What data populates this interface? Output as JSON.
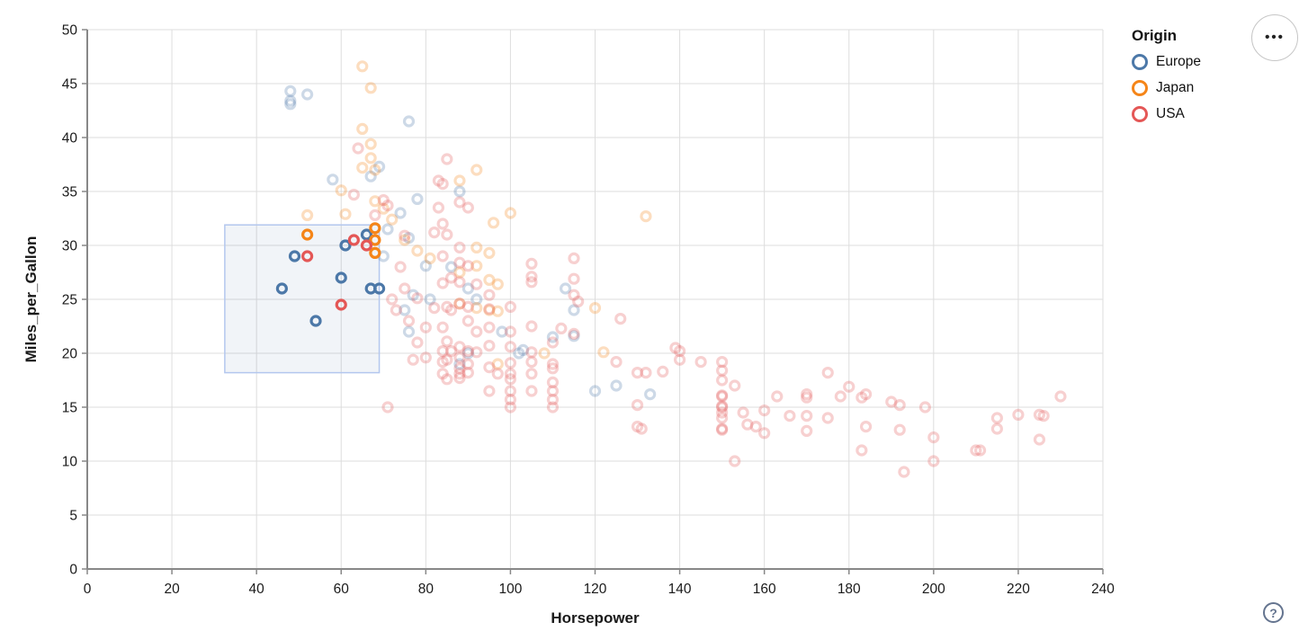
{
  "page": {
    "background": "#ffffff"
  },
  "controls": {
    "menu_icon": "•••",
    "help_icon": "?"
  },
  "chart_data": {
    "type": "scatter",
    "title": "",
    "xlabel": "Horsepower",
    "ylabel": "Miles_per_Gallon",
    "xlim": [
      0,
      240
    ],
    "ylim": [
      0,
      50
    ],
    "x_ticks": [
      0,
      20,
      40,
      60,
      80,
      100,
      120,
      140,
      160,
      180,
      200,
      220,
      240
    ],
    "y_ticks": [
      0,
      5,
      10,
      15,
      20,
      25,
      30,
      35,
      40,
      45,
      50
    ],
    "grid": true,
    "style": {
      "grid_color": "#dddddd",
      "axis_color": "#888888",
      "label_color": "#1a1a1a",
      "point_radius": 5,
      "point_stroke_width": 3.2,
      "faded_opacity": 0.28,
      "brush_fill": "#4c78a8",
      "brush_fill_opacity": 0.08,
      "brush_stroke": "#b3c7ee"
    },
    "legend": {
      "title": "Origin",
      "position": "top-right",
      "entries": [
        {
          "label": "Europe",
          "color": "#4c78a8"
        },
        {
          "label": "Japan",
          "color": "#f58518"
        },
        {
          "label": "USA",
          "color": "#e45756"
        }
      ]
    },
    "brush_selection": {
      "hp": [
        32.5,
        69
      ],
      "mpg": [
        18.2,
        31.9
      ]
    },
    "series": [
      {
        "name": "Europe",
        "color": "#4c78a8",
        "selected": [
          [
            46,
            26
          ],
          [
            49,
            29
          ],
          [
            54,
            23
          ],
          [
            60,
            27
          ],
          [
            61,
            30
          ],
          [
            66,
            31
          ],
          [
            67,
            26
          ],
          [
            69,
            26
          ]
        ],
        "points": [
          [
            48,
            44.3
          ],
          [
            52,
            44
          ],
          [
            48,
            43.4
          ],
          [
            48,
            43.1
          ],
          [
            76,
            41.5
          ],
          [
            69,
            37.3
          ],
          [
            67,
            36.4
          ],
          [
            58,
            36.1
          ],
          [
            88,
            35
          ],
          [
            78,
            34.3
          ],
          [
            74,
            33
          ],
          [
            71,
            31.5
          ],
          [
            76,
            30.7
          ],
          [
            70,
            29
          ],
          [
            86,
            28
          ],
          [
            80,
            28.1
          ],
          [
            90,
            26
          ],
          [
            113,
            26
          ],
          [
            77,
            25.4
          ],
          [
            81,
            25
          ],
          [
            92,
            25
          ],
          [
            75,
            24
          ],
          [
            115,
            24
          ],
          [
            76,
            22
          ],
          [
            98,
            22
          ],
          [
            115,
            21.6
          ],
          [
            110,
            21.5
          ],
          [
            90,
            20
          ],
          [
            102,
            20
          ],
          [
            103,
            20.3
          ],
          [
            88,
            19
          ],
          [
            125,
            17
          ],
          [
            120,
            16.5
          ],
          [
            133,
            16.2
          ]
        ]
      },
      {
        "name": "Japan",
        "color": "#f58518",
        "selected": [
          [
            52,
            31
          ],
          [
            68,
            31.6
          ],
          [
            68,
            30.5
          ],
          [
            68,
            29.3
          ]
        ],
        "points": [
          [
            65,
            46.6
          ],
          [
            67,
            44.6
          ],
          [
            65,
            40.8
          ],
          [
            67,
            39.4
          ],
          [
            67,
            38.1
          ],
          [
            68,
            37
          ],
          [
            92,
            37
          ],
          [
            88,
            36
          ],
          [
            65,
            37.2
          ],
          [
            60,
            35.1
          ],
          [
            68,
            34.1
          ],
          [
            61,
            32.9
          ],
          [
            52,
            32.8
          ],
          [
            70,
            33.4
          ],
          [
            72,
            32.4
          ],
          [
            96,
            32.1
          ],
          [
            100,
            33
          ],
          [
            132,
            32.7
          ],
          [
            75,
            30.5
          ],
          [
            78,
            29.5
          ],
          [
            92,
            29.8
          ],
          [
            95,
            29.3
          ],
          [
            81,
            28.8
          ],
          [
            92,
            28.1
          ],
          [
            88,
            27.5
          ],
          [
            95,
            26.8
          ],
          [
            97,
            26.4
          ],
          [
            95,
            24
          ],
          [
            88,
            24.6
          ],
          [
            92,
            24.2
          ],
          [
            97,
            23.9
          ],
          [
            120,
            24.2
          ],
          [
            97,
            19
          ],
          [
            108,
            20
          ],
          [
            122,
            20.1
          ]
        ]
      },
      {
        "name": "USA",
        "color": "#e45756",
        "selected": [
          [
            52,
            29
          ],
          [
            60,
            24.5
          ],
          [
            63,
            30.5
          ],
          [
            66,
            30
          ]
        ],
        "points": [
          [
            64,
            39
          ],
          [
            63,
            34.7
          ],
          [
            68,
            32.8
          ],
          [
            70,
            34.2
          ],
          [
            71,
            33.7
          ],
          [
            75,
            30.9
          ],
          [
            85,
            38
          ],
          [
            84,
            35.7
          ],
          [
            83,
            36
          ],
          [
            88,
            34
          ],
          [
            90,
            33.5
          ],
          [
            83,
            33.5
          ],
          [
            84,
            32
          ],
          [
            82,
            31.2
          ],
          [
            85,
            31
          ],
          [
            88,
            29.8
          ],
          [
            75,
            26
          ],
          [
            72,
            25
          ],
          [
            74,
            28
          ],
          [
            73,
            24
          ],
          [
            76,
            23
          ],
          [
            78,
            25.1
          ],
          [
            82,
            24.2
          ],
          [
            86,
            24
          ],
          [
            84,
            29
          ],
          [
            84,
            26.5
          ],
          [
            84,
            22.4
          ],
          [
            84,
            20.2
          ],
          [
            84,
            19.2
          ],
          [
            84,
            18.1
          ],
          [
            85,
            24.3
          ],
          [
            85,
            21.1
          ],
          [
            85,
            19.4
          ],
          [
            85,
            17.6
          ],
          [
            86,
            27
          ],
          [
            86,
            20.2
          ],
          [
            88,
            28.4
          ],
          [
            88,
            26.6
          ],
          [
            88,
            24.6
          ],
          [
            88,
            20.6
          ],
          [
            88,
            19.6
          ],
          [
            88,
            18.6
          ],
          [
            88,
            18.1
          ],
          [
            88,
            17.7
          ],
          [
            90,
            28.1
          ],
          [
            90,
            24.3
          ],
          [
            90,
            23
          ],
          [
            90,
            20.2
          ],
          [
            90,
            19
          ],
          [
            90,
            18.2
          ],
          [
            92,
            26.4
          ],
          [
            92,
            22
          ],
          [
            92,
            20.1
          ],
          [
            95,
            25.4
          ],
          [
            95,
            24.1
          ],
          [
            95,
            22.4
          ],
          [
            95,
            20.7
          ],
          [
            95,
            18.7
          ],
          [
            95,
            16.5
          ],
          [
            97,
            18.1
          ],
          [
            77,
            19.4
          ],
          [
            78,
            21
          ],
          [
            80,
            19.6
          ],
          [
            80,
            22.4
          ],
          [
            100,
            24.3
          ],
          [
            100,
            22
          ],
          [
            100,
            20.6
          ],
          [
            100,
            19.1
          ],
          [
            100,
            18.1
          ],
          [
            100,
            17.6
          ],
          [
            100,
            16.5
          ],
          [
            100,
            15.7
          ],
          [
            100,
            15
          ],
          [
            105,
            28.3
          ],
          [
            105,
            27.1
          ],
          [
            105,
            26.6
          ],
          [
            105,
            22.5
          ],
          [
            105,
            20.1
          ],
          [
            105,
            19.2
          ],
          [
            105,
            18.1
          ],
          [
            105,
            16.5
          ],
          [
            110,
            21
          ],
          [
            110,
            19
          ],
          [
            110,
            18.6
          ],
          [
            110,
            17.3
          ],
          [
            110,
            16.5
          ],
          [
            110,
            15.7
          ],
          [
            110,
            15
          ],
          [
            112,
            22.3
          ],
          [
            115,
            28.8
          ],
          [
            115,
            26.9
          ],
          [
            115,
            25.4
          ],
          [
            115,
            21.8
          ],
          [
            116,
            24.8
          ],
          [
            125,
            19.2
          ],
          [
            126,
            23.2
          ],
          [
            130,
            18.2
          ],
          [
            130,
            15.2
          ],
          [
            130,
            13.2
          ],
          [
            131,
            13
          ],
          [
            132,
            18.2
          ],
          [
            136,
            18.3
          ],
          [
            139,
            20.5
          ],
          [
            140,
            20.2
          ],
          [
            140,
            19.4
          ],
          [
            145,
            19.2
          ],
          [
            150,
            19.2
          ],
          [
            150,
            18.4
          ],
          [
            150,
            17.5
          ],
          [
            150,
            16.1
          ],
          [
            150,
            16
          ],
          [
            150,
            15.1
          ],
          [
            150,
            15
          ],
          [
            150,
            14.5
          ],
          [
            150,
            14
          ],
          [
            150,
            13
          ],
          [
            150,
            12.9
          ],
          [
            153,
            17
          ],
          [
            153,
            10
          ],
          [
            155,
            14.5
          ],
          [
            156,
            13.4
          ],
          [
            158,
            13.2
          ],
          [
            160,
            14.7
          ],
          [
            160,
            12.6
          ],
          [
            163,
            16
          ],
          [
            166,
            14.2
          ],
          [
            170,
            16.2
          ],
          [
            170,
            15.9
          ],
          [
            170,
            14.2
          ],
          [
            170,
            12.8
          ],
          [
            175,
            18.2
          ],
          [
            175,
            14
          ],
          [
            178,
            16
          ],
          [
            180,
            16.9
          ],
          [
            183,
            15.9
          ],
          [
            184,
            16.2
          ],
          [
            184,
            13.2
          ],
          [
            183,
            11
          ],
          [
            190,
            15.5
          ],
          [
            192,
            15.2
          ],
          [
            192,
            12.9
          ],
          [
            193,
            9
          ],
          [
            198,
            15
          ],
          [
            200,
            12.2
          ],
          [
            200,
            10
          ],
          [
            210,
            11
          ],
          [
            211,
            11
          ],
          [
            215,
            14
          ],
          [
            215,
            13
          ],
          [
            220,
            14.3
          ],
          [
            225,
            14.3
          ],
          [
            226,
            14.2
          ],
          [
            225,
            12
          ],
          [
            230,
            16
          ],
          [
            71,
            15
          ]
        ]
      }
    ]
  }
}
